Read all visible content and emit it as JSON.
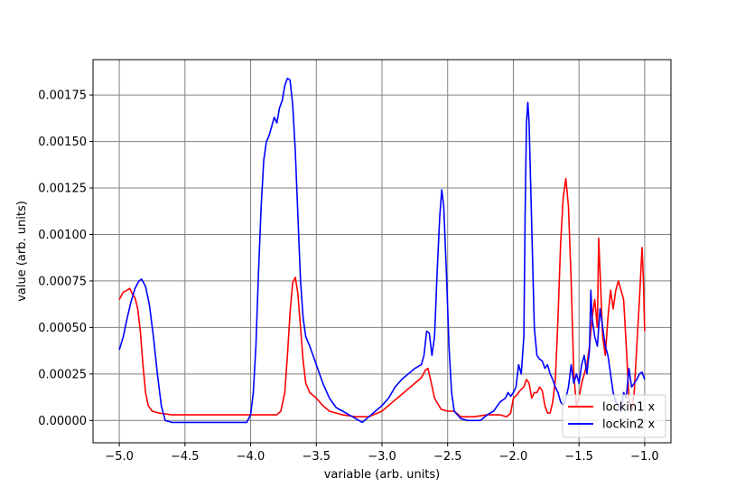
{
  "chart_data": {
    "type": "line",
    "xlabel": "variable (arb. units)",
    "ylabel": "value (arb. units)",
    "xlim": [
      -5.2,
      -0.8
    ],
    "ylim": [
      -0.00012,
      0.00194
    ],
    "x_ticks": [
      -5.0,
      -4.5,
      -4.0,
      -3.5,
      -3.0,
      -2.5,
      -2.0,
      -1.5,
      -1.0
    ],
    "x_tick_labels": [
      "−5.0",
      "−4.5",
      "−4.0",
      "−3.5",
      "−3.0",
      "−2.5",
      "−2.0",
      "−1.5",
      "−1.0"
    ],
    "y_ticks": [
      0,
      0.00025,
      0.0005,
      0.00075,
      0.001,
      0.00125,
      0.0015,
      0.00175
    ],
    "y_tick_labels": [
      "0.00000",
      "0.00025",
      "0.00050",
      "0.00075",
      "0.00100",
      "0.00125",
      "0.00150",
      "0.00175"
    ],
    "grid": true,
    "grid_color": "#808080",
    "legend_position": "lower-right",
    "series": [
      {
        "name": "lockin1 x",
        "color": "#ff0000",
        "points": [
          [
            -5.0,
            0.00065
          ],
          [
            -4.97,
            0.00069
          ],
          [
            -4.94,
            0.0007
          ],
          [
            -4.92,
            0.00071
          ],
          [
            -4.9,
            0.00068
          ],
          [
            -4.88,
            0.00066
          ],
          [
            -4.86,
            0.0006
          ],
          [
            -4.84,
            0.00048
          ],
          [
            -4.82,
            0.0003
          ],
          [
            -4.8,
            0.00015
          ],
          [
            -4.78,
            8e-05
          ],
          [
            -4.75,
            5e-05
          ],
          [
            -4.7,
            4e-05
          ],
          [
            -4.6,
            3e-05
          ],
          [
            -4.5,
            3e-05
          ],
          [
            -4.3,
            3e-05
          ],
          [
            -4.1,
            3e-05
          ],
          [
            -3.9,
            3e-05
          ],
          [
            -3.8,
            3e-05
          ],
          [
            -3.77,
            5e-05
          ],
          [
            -3.74,
            0.00015
          ],
          [
            -3.72,
            0.00035
          ],
          [
            -3.7,
            0.00058
          ],
          [
            -3.68,
            0.00074
          ],
          [
            -3.66,
            0.00077
          ],
          [
            -3.64,
            0.00068
          ],
          [
            -3.62,
            0.0005
          ],
          [
            -3.6,
            0.00032
          ],
          [
            -3.58,
            0.0002
          ],
          [
            -3.55,
            0.00015
          ],
          [
            -3.5,
            0.00012
          ],
          [
            -3.45,
            8e-05
          ],
          [
            -3.4,
            5e-05
          ],
          [
            -3.3,
            3e-05
          ],
          [
            -3.2,
            2e-05
          ],
          [
            -3.1,
            2e-05
          ],
          [
            -3.0,
            5e-05
          ],
          [
            -2.95,
            8e-05
          ],
          [
            -2.9,
            0.00011
          ],
          [
            -2.85,
            0.00014
          ],
          [
            -2.8,
            0.00017
          ],
          [
            -2.75,
            0.0002
          ],
          [
            -2.7,
            0.00023
          ],
          [
            -2.67,
            0.00027
          ],
          [
            -2.65,
            0.00028
          ],
          [
            -2.63,
            0.00022
          ],
          [
            -2.6,
            0.00012
          ],
          [
            -2.55,
            6e-05
          ],
          [
            -2.5,
            5e-05
          ],
          [
            -2.45,
            5e-05
          ],
          [
            -2.4,
            2e-05
          ],
          [
            -2.3,
            2e-05
          ],
          [
            -2.2,
            3e-05
          ],
          [
            -2.1,
            3e-05
          ],
          [
            -2.05,
            2e-05
          ],
          [
            -2.02,
            4e-05
          ],
          [
            -2.0,
            0.00012
          ],
          [
            -1.97,
            0.00014
          ],
          [
            -1.95,
            0.00016
          ],
          [
            -1.92,
            0.00018
          ],
          [
            -1.9,
            0.00022
          ],
          [
            -1.88,
            0.0002
          ],
          [
            -1.86,
            0.00012
          ],
          [
            -1.84,
            0.00015
          ],
          [
            -1.82,
            0.00015
          ],
          [
            -1.8,
            0.00018
          ],
          [
            -1.78,
            0.00016
          ],
          [
            -1.76,
            8e-05
          ],
          [
            -1.74,
            4e-05
          ],
          [
            -1.72,
            4e-05
          ],
          [
            -1.7,
            0.0001
          ],
          [
            -1.68,
            0.00022
          ],
          [
            -1.66,
            0.00055
          ],
          [
            -1.64,
            0.00095
          ],
          [
            -1.62,
            0.0012
          ],
          [
            -1.6,
            0.0013
          ],
          [
            -1.58,
            0.00115
          ],
          [
            -1.56,
            0.00075
          ],
          [
            -1.54,
            0.00025
          ],
          [
            -1.52,
            8e-05
          ],
          [
            -1.5,
            0.00012
          ],
          [
            -1.48,
            0.0002
          ],
          [
            -1.46,
            0.00025
          ],
          [
            -1.44,
            0.0003
          ],
          [
            -1.42,
            0.0004
          ],
          [
            -1.4,
            0.00055
          ],
          [
            -1.38,
            0.00065
          ],
          [
            -1.36,
            0.0005
          ],
          [
            -1.35,
            0.00098
          ],
          [
            -1.34,
            0.0008
          ],
          [
            -1.32,
            0.00045
          ],
          [
            -1.3,
            0.00035
          ],
          [
            -1.28,
            0.00055
          ],
          [
            -1.26,
            0.0007
          ],
          [
            -1.24,
            0.0006
          ],
          [
            -1.22,
            0.0007
          ],
          [
            -1.2,
            0.00075
          ],
          [
            -1.18,
            0.0007
          ],
          [
            -1.16,
            0.00065
          ],
          [
            -1.14,
            0.0004
          ],
          [
            -1.12,
            0.00012
          ],
          [
            -1.1,
            5e-05
          ],
          [
            -1.08,
            0.00015
          ],
          [
            -1.06,
            0.0004
          ],
          [
            -1.04,
            0.00065
          ],
          [
            -1.02,
            0.00093
          ],
          [
            -1.01,
            0.00075
          ],
          [
            -1.0,
            0.00048
          ]
        ]
      },
      {
        "name": "lockin2 x",
        "color": "#0000ff",
        "points": [
          [
            -5.0,
            0.00038
          ],
          [
            -4.97,
            0.00045
          ],
          [
            -4.94,
            0.00055
          ],
          [
            -4.91,
            0.00064
          ],
          [
            -4.88,
            0.00071
          ],
          [
            -4.85,
            0.00075
          ],
          [
            -4.83,
            0.00076
          ],
          [
            -4.8,
            0.00072
          ],
          [
            -4.77,
            0.00062
          ],
          [
            -4.74,
            0.00045
          ],
          [
            -4.71,
            0.00025
          ],
          [
            -4.68,
            8e-05
          ],
          [
            -4.65,
            0.0
          ],
          [
            -4.6,
            -1e-05
          ],
          [
            -4.5,
            -1e-05
          ],
          [
            -4.3,
            -1e-05
          ],
          [
            -4.1,
            -1e-05
          ],
          [
            -4.03,
            -1e-05
          ],
          [
            -4.0,
            3e-05
          ],
          [
            -3.98,
            0.00015
          ],
          [
            -3.96,
            0.0004
          ],
          [
            -3.94,
            0.0008
          ],
          [
            -3.92,
            0.00115
          ],
          [
            -3.9,
            0.0014
          ],
          [
            -3.88,
            0.0015
          ],
          [
            -3.86,
            0.00153
          ],
          [
            -3.84,
            0.00158
          ],
          [
            -3.82,
            0.00163
          ],
          [
            -3.8,
            0.0016
          ],
          [
            -3.78,
            0.00168
          ],
          [
            -3.76,
            0.00172
          ],
          [
            -3.74,
            0.0018
          ],
          [
            -3.72,
            0.00184
          ],
          [
            -3.7,
            0.00183
          ],
          [
            -3.68,
            0.0017
          ],
          [
            -3.66,
            0.00145
          ],
          [
            -3.64,
            0.0011
          ],
          [
            -3.62,
            0.00075
          ],
          [
            -3.6,
            0.00055
          ],
          [
            -3.58,
            0.00045
          ],
          [
            -3.55,
            0.0004
          ],
          [
            -3.5,
            0.0003
          ],
          [
            -3.45,
            0.0002
          ],
          [
            -3.4,
            0.00012
          ],
          [
            -3.35,
            7e-05
          ],
          [
            -3.3,
            5e-05
          ],
          [
            -3.25,
            3e-05
          ],
          [
            -3.2,
            1e-05
          ],
          [
            -3.15,
            -1e-05
          ],
          [
            -3.1,
            2e-05
          ],
          [
            -3.05,
            5e-05
          ],
          [
            -3.0,
            8e-05
          ],
          [
            -2.95,
            0.00012
          ],
          [
            -2.9,
            0.00018
          ],
          [
            -2.85,
            0.00022
          ],
          [
            -2.8,
            0.00025
          ],
          [
            -2.75,
            0.00028
          ],
          [
            -2.7,
            0.0003
          ],
          [
            -2.68,
            0.00035
          ],
          [
            -2.66,
            0.00048
          ],
          [
            -2.64,
            0.00047
          ],
          [
            -2.62,
            0.00035
          ],
          [
            -2.6,
            0.00045
          ],
          [
            -2.58,
            0.0008
          ],
          [
            -2.56,
            0.0011
          ],
          [
            -2.545,
            0.00124
          ],
          [
            -2.53,
            0.00115
          ],
          [
            -2.51,
            0.0008
          ],
          [
            -2.49,
            0.0004
          ],
          [
            -2.47,
            0.00015
          ],
          [
            -2.45,
            5e-05
          ],
          [
            -2.4,
            1e-05
          ],
          [
            -2.35,
            0.0
          ],
          [
            -2.3,
            0.0
          ],
          [
            -2.25,
            0.0
          ],
          [
            -2.2,
            3e-05
          ],
          [
            -2.15,
            5e-05
          ],
          [
            -2.1,
            0.0001
          ],
          [
            -2.06,
            0.00012
          ],
          [
            -2.04,
            0.00015
          ],
          [
            -2.02,
            0.00013
          ],
          [
            -2.0,
            0.00015
          ],
          [
            -1.98,
            0.00018
          ],
          [
            -1.96,
            0.0003
          ],
          [
            -1.94,
            0.00025
          ],
          [
            -1.92,
            0.00045
          ],
          [
            -1.91,
            0.0011
          ],
          [
            -1.9,
            0.0016
          ],
          [
            -1.89,
            0.00171
          ],
          [
            -1.88,
            0.0016
          ],
          [
            -1.86,
            0.00105
          ],
          [
            -1.84,
            0.0005
          ],
          [
            -1.82,
            0.00035
          ],
          [
            -1.8,
            0.00033
          ],
          [
            -1.78,
            0.00032
          ],
          [
            -1.76,
            0.00028
          ],
          [
            -1.74,
            0.0003
          ],
          [
            -1.72,
            0.00025
          ],
          [
            -1.7,
            0.00022
          ],
          [
            -1.68,
            0.00018
          ],
          [
            -1.66,
            0.00015
          ],
          [
            -1.64,
            0.0001
          ],
          [
            -1.62,
            8e-05
          ],
          [
            -1.6,
            0.00012
          ],
          [
            -1.58,
            0.00018
          ],
          [
            -1.56,
            0.0003
          ],
          [
            -1.54,
            0.0002
          ],
          [
            -1.52,
            0.00025
          ],
          [
            -1.5,
            0.0002
          ],
          [
            -1.48,
            0.0003
          ],
          [
            -1.46,
            0.00035
          ],
          [
            -1.44,
            0.00025
          ],
          [
            -1.42,
            0.00038
          ],
          [
            -1.41,
            0.0007
          ],
          [
            -1.4,
            0.00055
          ],
          [
            -1.38,
            0.00045
          ],
          [
            -1.36,
            0.0004
          ],
          [
            -1.34,
            0.0006
          ],
          [
            -1.32,
            0.0005
          ],
          [
            -1.3,
            0.0004
          ],
          [
            -1.28,
            0.00035
          ],
          [
            -1.26,
            0.00025
          ],
          [
            -1.24,
            0.00015
          ],
          [
            -1.22,
            0.0001
          ],
          [
            -1.2,
            8e-05
          ],
          [
            -1.18,
            5e-05
          ],
          [
            -1.16,
            0.00015
          ],
          [
            -1.14,
            0.00012
          ],
          [
            -1.12,
            0.00028
          ],
          [
            -1.1,
            0.00018
          ],
          [
            -1.08,
            0.0002
          ],
          [
            -1.06,
            0.00022
          ],
          [
            -1.04,
            0.00025
          ],
          [
            -1.02,
            0.00026
          ],
          [
            -1.0,
            0.00022
          ]
        ]
      }
    ]
  }
}
